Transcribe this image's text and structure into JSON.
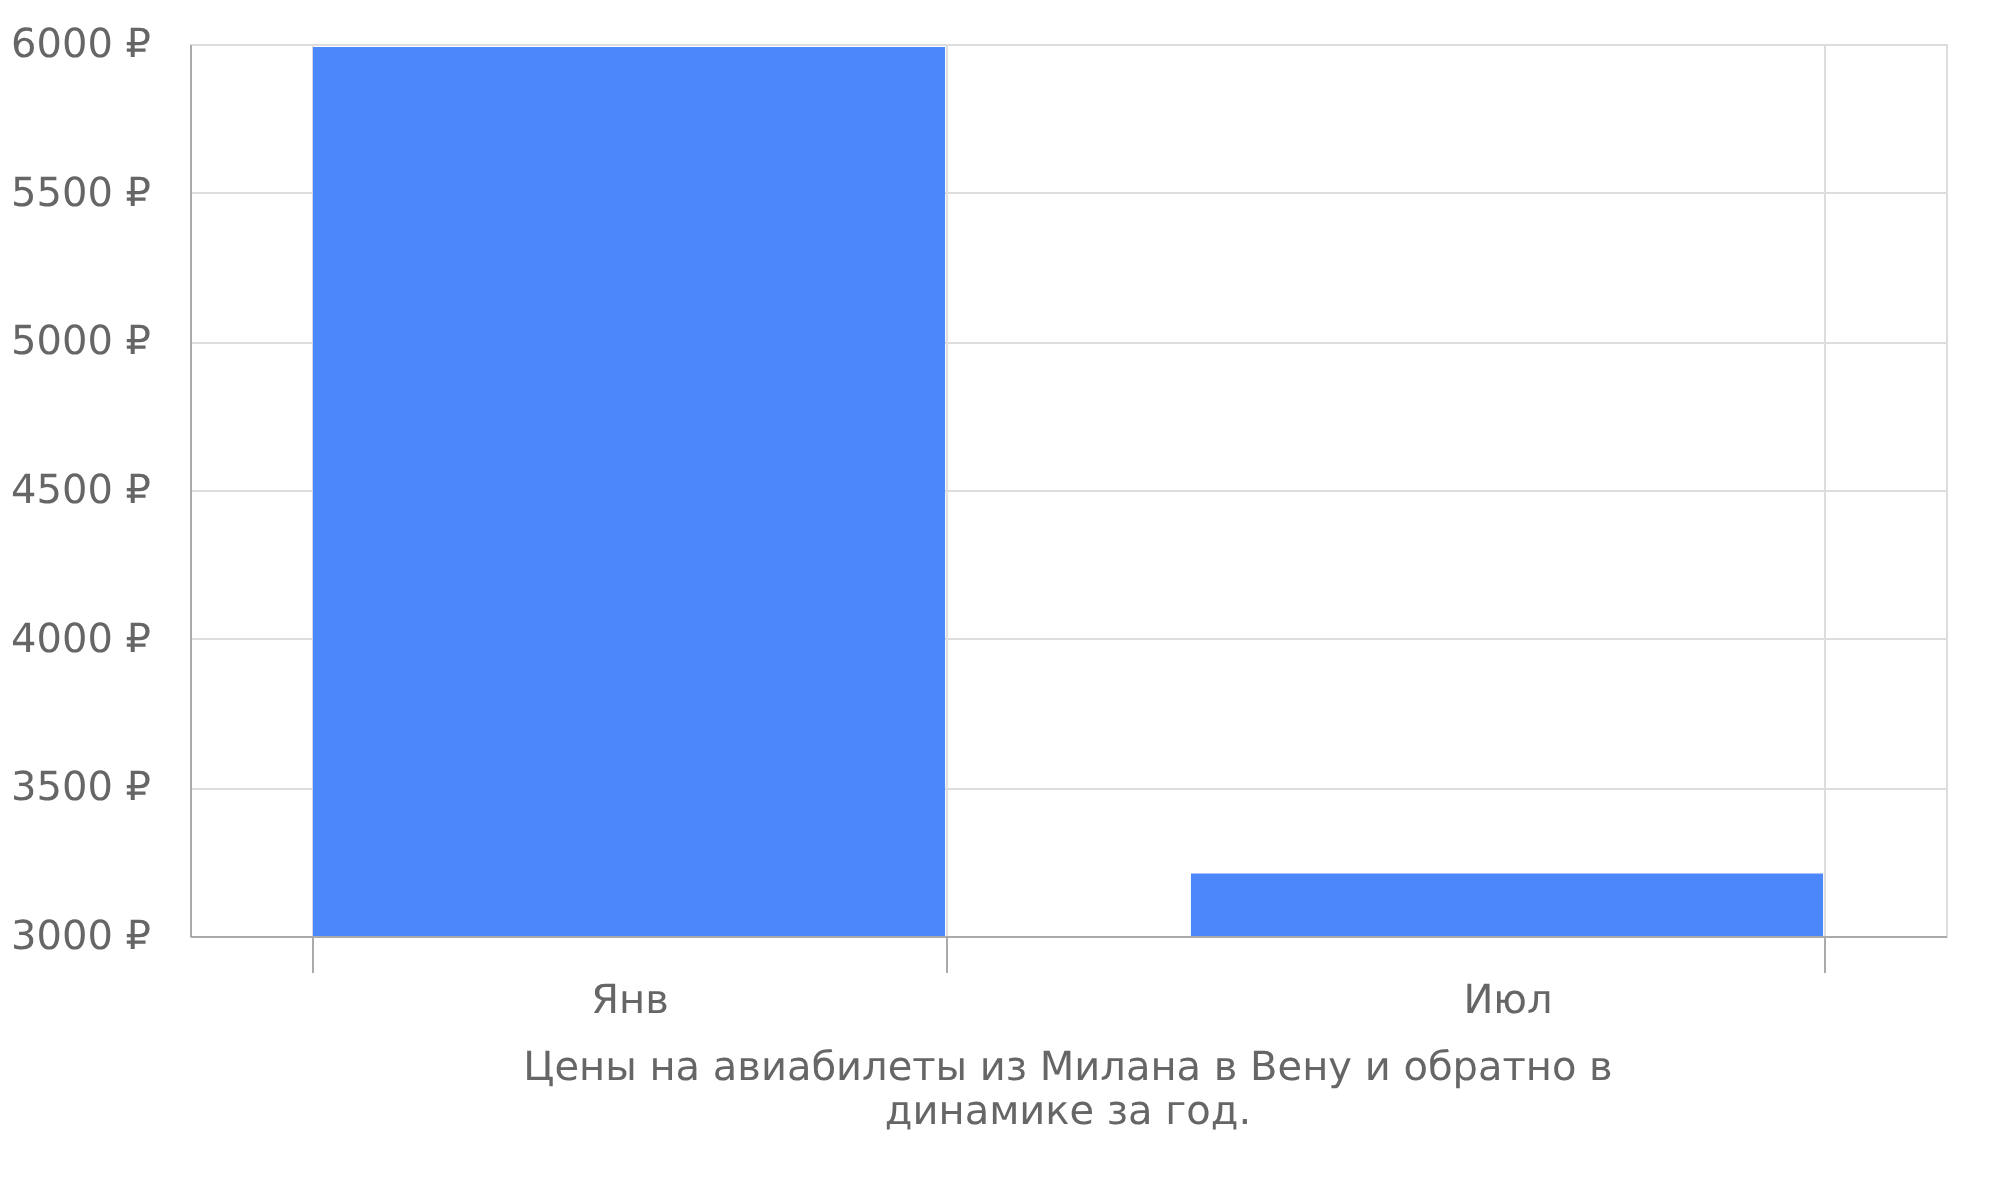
{
  "chart_data": {
    "type": "bar",
    "categories": [
      "Янв",
      "Июл"
    ],
    "values": [
      5990,
      3210
    ],
    "color": "#4d88fa",
    "ylim": [
      3000,
      6000
    ],
    "yticks": [
      {
        "value": 3000,
        "label": "3000 ₽"
      },
      {
        "value": 3500,
        "label": "3500 ₽"
      },
      {
        "value": 4000,
        "label": "4000 ₽"
      },
      {
        "value": 4500,
        "label": "4500 ₽"
      },
      {
        "value": 5000,
        "label": "5000 ₽"
      },
      {
        "value": 5500,
        "label": "5500 ₽"
      },
      {
        "value": 6000,
        "label": "6000 ₽"
      }
    ],
    "grid": true,
    "annotations": [
      "Цены на авиабилеты из Милана в Вену и обратно в динамике за год."
    ]
  }
}
